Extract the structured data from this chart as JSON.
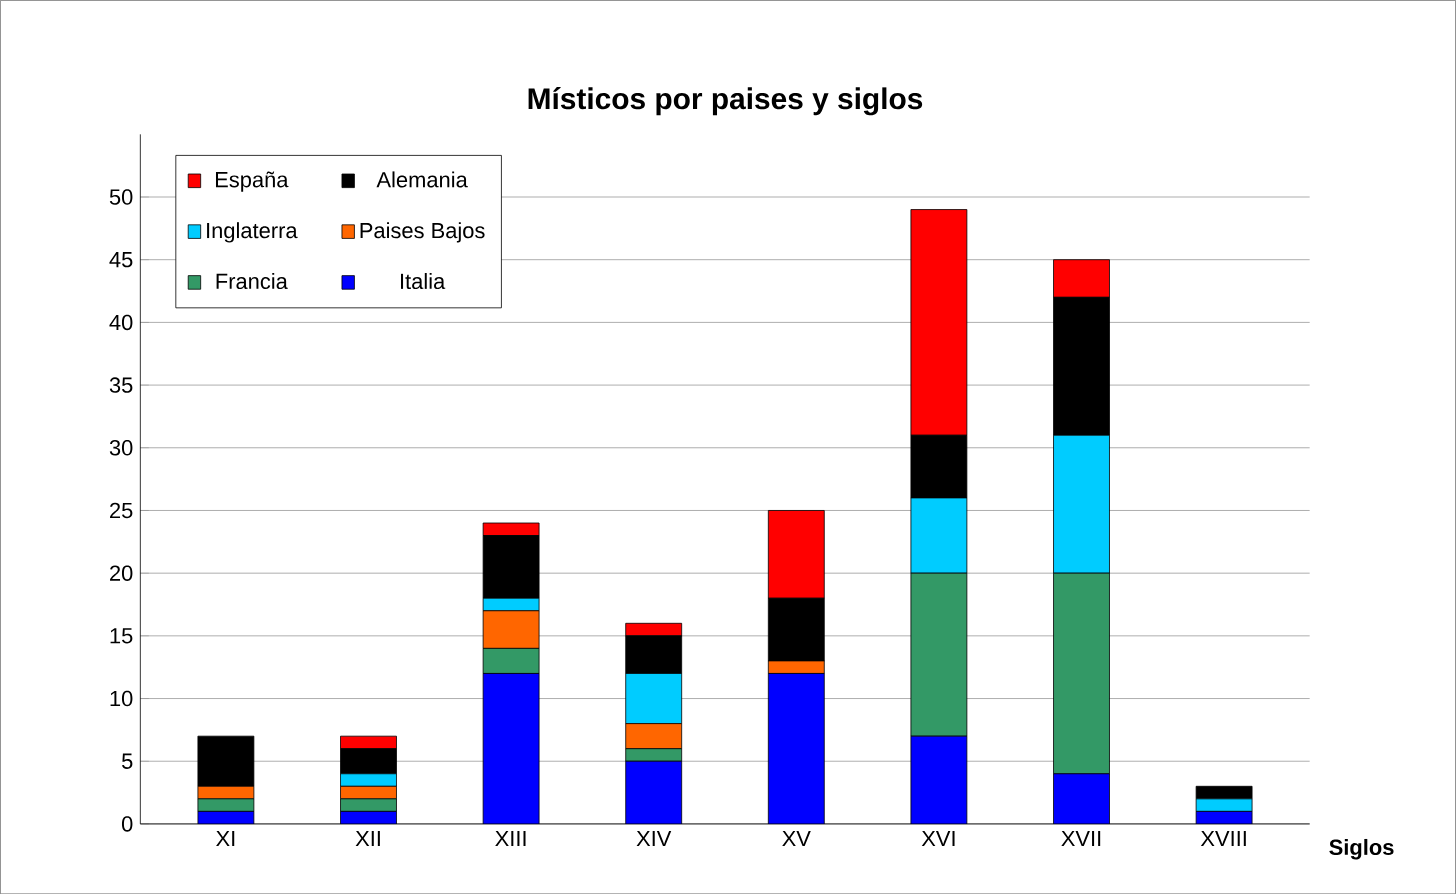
{
  "chart_data": {
    "type": "bar",
    "stacked": true,
    "title": "Místicos por paises y siglos",
    "xlabel": "Siglos",
    "categories": [
      "XI",
      "XII",
      "XIII",
      "XIV",
      "XV",
      "XVI",
      "XVII",
      "XVIII"
    ],
    "series": [
      {
        "name": "Italia",
        "color": "#0000ff",
        "values": [
          1,
          1,
          12,
          5,
          12,
          7,
          4,
          1
        ]
      },
      {
        "name": "Francia",
        "color": "#339966",
        "values": [
          1,
          1,
          2,
          1,
          0,
          13,
          16,
          0
        ]
      },
      {
        "name": "Paises Bajos",
        "color": "#ff6600",
        "values": [
          1,
          1,
          3,
          2,
          1,
          0,
          0,
          0
        ]
      },
      {
        "name": "Inglaterra",
        "color": "#00ccff",
        "values": [
          0,
          1,
          1,
          4,
          0,
          6,
          11,
          1
        ]
      },
      {
        "name": "Alemania",
        "color": "#000000",
        "values": [
          4,
          2,
          5,
          3,
          5,
          5,
          11,
          1
        ]
      },
      {
        "name": "España",
        "color": "#ff0000",
        "values": [
          0,
          1,
          1,
          1,
          7,
          18,
          3,
          0
        ]
      }
    ],
    "ylim": [
      0,
      55
    ],
    "yticks": [
      0,
      5,
      10,
      15,
      20,
      25,
      30,
      35,
      40,
      45,
      50
    ],
    "grid": "y",
    "legend": "top left"
  }
}
